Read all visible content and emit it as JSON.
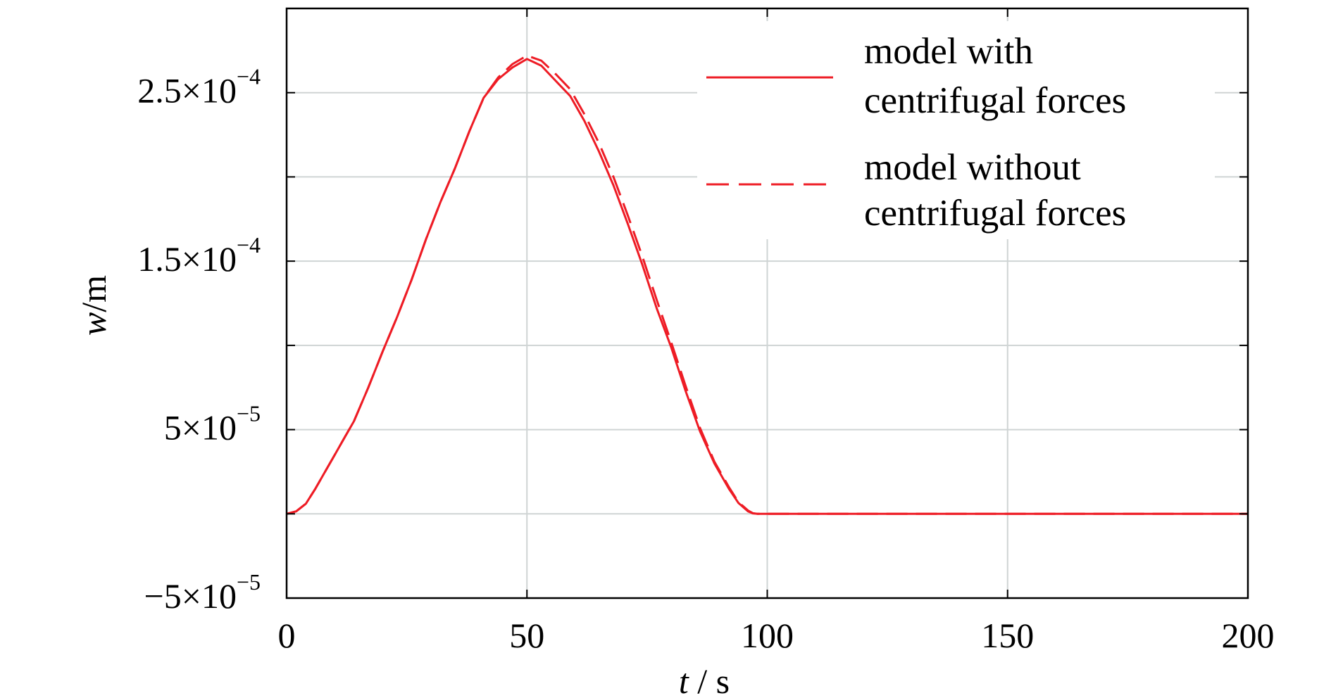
{
  "chart_data": {
    "type": "line",
    "title": "",
    "xlabel": {
      "var": "t",
      "sep": " / ",
      "unit": "s"
    },
    "ylabel": {
      "var": "w",
      "sep": "/",
      "unit": "m"
    },
    "xlim": [
      0,
      200
    ],
    "ylim": [
      -5e-05,
      0.0003
    ],
    "grid": true,
    "legend_position": "top-right",
    "x_ticks": [
      {
        "value": 0,
        "label": "0"
      },
      {
        "value": 50,
        "label": "50"
      },
      {
        "value": 100,
        "label": "100"
      },
      {
        "value": 150,
        "label": "150"
      },
      {
        "value": 200,
        "label": "200"
      }
    ],
    "y_ticks": [
      {
        "value": -5e-05,
        "sign": "−",
        "mantissa": "5",
        "times": "×10",
        "exponent": "−5"
      },
      {
        "value": 5e-05,
        "sign": "",
        "mantissa": "5",
        "times": "×10",
        "exponent": "−5"
      },
      {
        "value": 0.00015,
        "sign": "",
        "mantissa": "1.5",
        "times": "×10",
        "exponent": "−4"
      },
      {
        "value": 0.00025,
        "sign": "",
        "mantissa": "2.5",
        "times": "×10",
        "exponent": "−4"
      }
    ],
    "y_minor_ticks": [
      0,
      0.0001,
      0.0002,
      0.0003
    ],
    "series": [
      {
        "legend": [
          "model with",
          "centrifugal forces"
        ],
        "color": "#ee1c25",
        "dash": "solid",
        "x": [
          0,
          2,
          4,
          6,
          8,
          10,
          12,
          14,
          17,
          20,
          23,
          26,
          29,
          32,
          35,
          38,
          41,
          44,
          47,
          50,
          53,
          56,
          59,
          62,
          65,
          68,
          71,
          74,
          77,
          80,
          83,
          86,
          89,
          92,
          94,
          96,
          97,
          98,
          100,
          120,
          140,
          160,
          180,
          200
        ],
        "y": [
          0,
          1.5e-06,
          6e-06,
          1.5e-05,
          2.5e-05,
          3.5e-05,
          4.5e-05,
          5.5e-05,
          7.5e-05,
          9.65e-05,
          0.000117,
          0.000139,
          0.000163,
          0.000185,
          0.000205,
          0.000227,
          0.000247,
          0.000258,
          0.000265,
          0.00027,
          0.000266,
          0.000257,
          0.000248,
          0.000233,
          0.000215,
          0.000195,
          0.000172,
          0.000148,
          0.000122,
          9.9e-05,
          7.3e-05,
          4.9e-05,
          3e-05,
          1.5e-05,
          6.5e-06,
          1.5e-06,
          3e-07,
          0,
          0,
          0,
          0,
          0,
          0,
          0
        ]
      },
      {
        "legend": [
          "model without",
          "centrifugal forces"
        ],
        "color": "#ee1c25",
        "dash": "dashed",
        "x": [
          0,
          2,
          4,
          6,
          8,
          10,
          12,
          14,
          17,
          20,
          23,
          26,
          29,
          32,
          35,
          38,
          41,
          44,
          47,
          50,
          53,
          56,
          59,
          62,
          65,
          68,
          71,
          74,
          77,
          80,
          83,
          86,
          89,
          92,
          94,
          96,
          97,
          98,
          100,
          120,
          140,
          160,
          180,
          200
        ],
        "y": [
          0,
          1.5e-06,
          6e-06,
          1.5e-05,
          2.5e-05,
          3.5e-05,
          4.5e-05,
          5.5e-05,
          7.5e-05,
          9.65e-05,
          0.000117,
          0.000139,
          0.000163,
          0.000185,
          0.000205,
          0.000227,
          0.000247,
          0.000259,
          0.000267,
          0.000272,
          0.000269,
          0.000261,
          0.000252,
          0.000237,
          0.00022,
          0.0002,
          0.000177,
          0.000153,
          0.000127,
          0.000102,
          7.6e-05,
          5.1e-05,
          3.1e-05,
          1.6e-05,
          7e-06,
          2e-06,
          4e-07,
          0,
          0,
          0,
          0,
          0,
          0,
          0
        ]
      }
    ]
  }
}
